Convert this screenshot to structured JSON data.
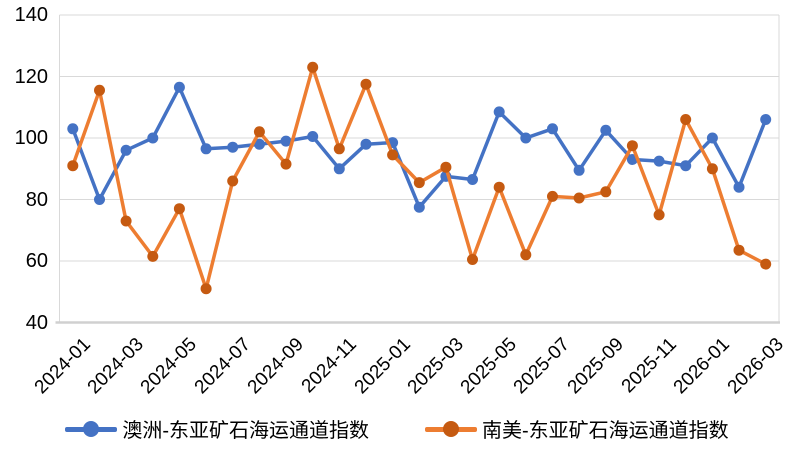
{
  "chart_data": {
    "type": "line",
    "title": "",
    "categories": [
      "2024-01",
      "2024-02",
      "2024-03",
      "2024-04",
      "2024-05",
      "2024-06",
      "2024-07",
      "2024-08",
      "2024-09",
      "2024-10",
      "2024-11",
      "2024-12",
      "2025-01",
      "2025-02",
      "2025-03",
      "2025-04",
      "2025-05",
      "2025-06",
      "2025-07",
      "2025-08",
      "2025-09",
      "2025-10",
      "2025-11",
      "2025-12",
      "2026-01",
      "2026-02",
      "2026-03"
    ],
    "x_tick_labels": [
      "2024-01",
      "2024-03",
      "2024-05",
      "2024-07",
      "2024-09",
      "2024-11",
      "2025-01",
      "2025-03",
      "2025-05",
      "2025-07",
      "2025-09",
      "2025-11",
      "2026-01",
      "2026-03"
    ],
    "x_tick_every": 2,
    "series": [
      {
        "name": "澳洲-东亚矿石海运通道指数",
        "line_color": "#4472C4",
        "marker_color": "#4472C4",
        "values": [
          103,
          80,
          96,
          100,
          116.5,
          96.5,
          97,
          98,
          99,
          100.5,
          90,
          98,
          98.5,
          77.5,
          87.5,
          86.5,
          108.5,
          100,
          103,
          89.5,
          102.5,
          93,
          92.5,
          91,
          100,
          84,
          106
        ]
      },
      {
        "name": "南美-东亚矿石海运通道指数",
        "line_color": "#ED7D31",
        "marker_color": "#C55A11",
        "values": [
          91,
          115.5,
          73,
          61.5,
          77,
          51,
          86,
          102,
          91.5,
          123,
          96.5,
          117.5,
          94.5,
          85.5,
          90.5,
          60.5,
          84,
          62,
          81,
          80.5,
          82.5,
          97.5,
          75,
          106,
          90,
          63.5,
          59
        ]
      }
    ],
    "ylim": [
      40,
      140
    ],
    "yticks": [
      40,
      60,
      80,
      100,
      120,
      140
    ],
    "grid": true,
    "gridline_color": "#D9D9D9",
    "axis_line_color": "#D0D0D0",
    "legend_position": "bottom"
  }
}
